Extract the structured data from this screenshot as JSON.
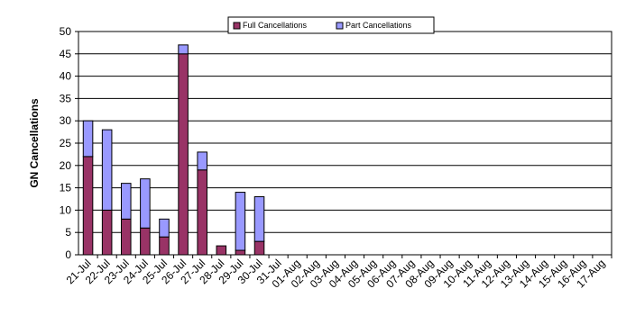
{
  "chart_data": {
    "type": "bar",
    "stacked": true,
    "categories": [
      "21-Jul",
      "22-Jul",
      "23-Jul",
      "24-Jul",
      "25-Jul",
      "26-Jul",
      "27-Jul",
      "28-Jul",
      "29-Jul",
      "30-Jul",
      "31-Jul",
      "01-Aug",
      "02-Aug",
      "03-Aug",
      "04-Aug",
      "05-Aug",
      "06-Aug",
      "07-Aug",
      "08-Aug",
      "09-Aug",
      "10-Aug",
      "11-Aug",
      "12-Aug",
      "13-Aug",
      "14-Aug",
      "15-Aug",
      "16-Aug",
      "17-Aug"
    ],
    "series": [
      {
        "name": "Full Cancellations",
        "color": "#993366",
        "values": [
          22,
          10,
          8,
          6,
          4,
          45,
          19,
          2,
          1,
          3,
          0,
          0,
          0,
          0,
          0,
          0,
          0,
          0,
          0,
          0,
          0,
          0,
          0,
          0,
          0,
          0,
          0,
          0
        ]
      },
      {
        "name": "Part Cancellations",
        "color": "#9999ff",
        "values": [
          8,
          18,
          8,
          11,
          4,
          2,
          4,
          0,
          13,
          10,
          0,
          0,
          0,
          0,
          0,
          0,
          0,
          0,
          0,
          0,
          0,
          0,
          0,
          0,
          0,
          0,
          0,
          0
        ]
      }
    ],
    "ylabel": "GN Cancellations",
    "xlabel": "",
    "ylim": [
      0,
      50
    ],
    "yticks": [
      0,
      5,
      10,
      15,
      20,
      25,
      30,
      35,
      40,
      45,
      50
    ],
    "grid": true,
    "legend_position": "top"
  }
}
